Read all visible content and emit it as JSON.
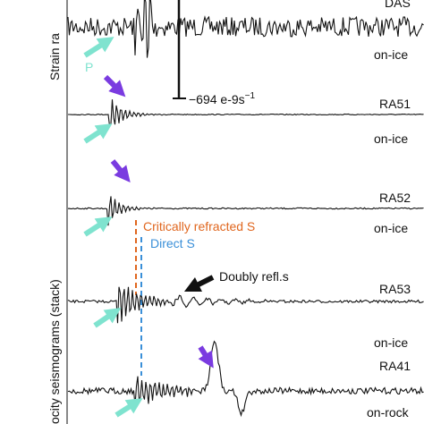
{
  "axis_labels": {
    "top": "Strain ra",
    "bottom": "ocity seismograms (stack)"
  },
  "scale_bar": {
    "label": "−694 e-9s",
    "exponent": "−1"
  },
  "phase_label": "P",
  "traces": [
    {
      "name": "DAS",
      "site": "on-ice"
    },
    {
      "name": "RA51",
      "site": "on-ice"
    },
    {
      "name": "RA52",
      "site": "on-ice"
    },
    {
      "name": "RA53",
      "site": "on-ice"
    },
    {
      "name": "RA41",
      "site": "on-rock"
    }
  ],
  "annotations": {
    "critically_refracted": "Critically refracted S",
    "direct": "Direct S",
    "doubly_reflected": "Doubly refl.s"
  }
}
